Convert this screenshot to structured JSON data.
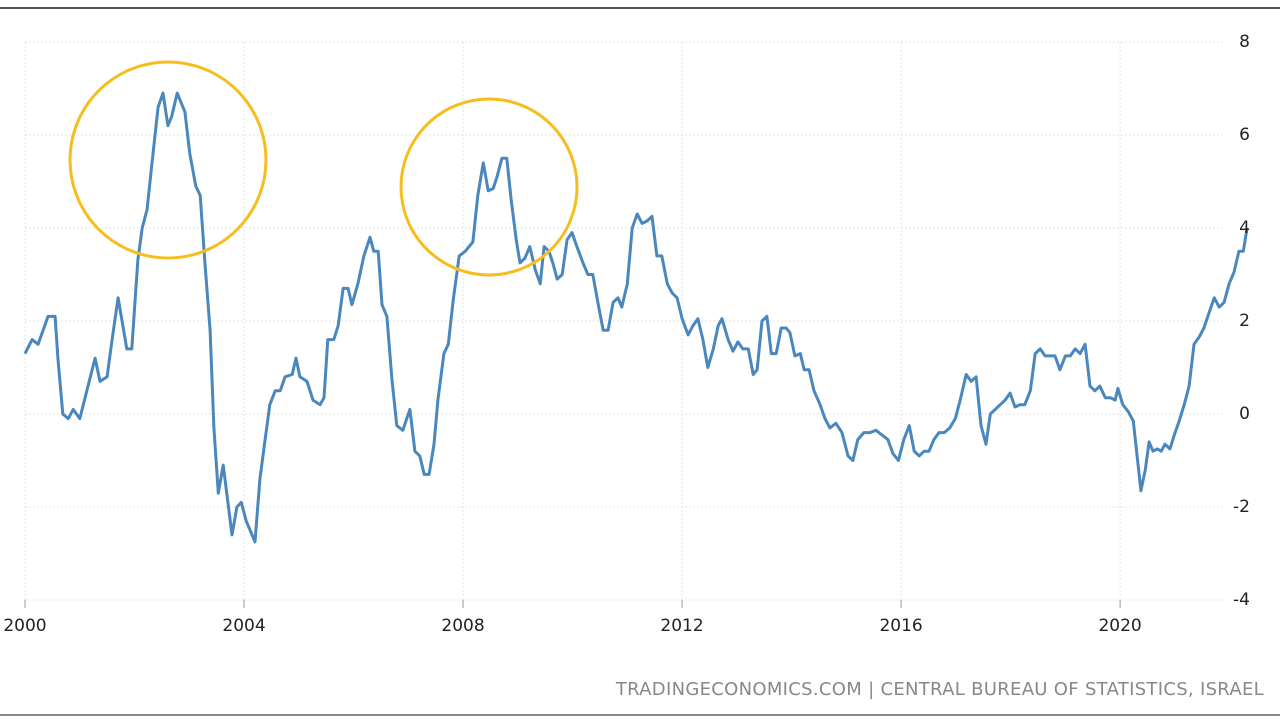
{
  "chart_data": {
    "type": "line",
    "source": "TRADINGECONOMICS.COM | CENTRAL BUREAU OF STATISTICS, ISRAEL",
    "xlim": [
      2000,
      2022.5
    ],
    "xticks": [
      2000,
      2004,
      2008,
      2012,
      2016,
      2020
    ],
    "ylim": [
      -4,
      8
    ],
    "yticks": [
      -4,
      -2,
      0,
      2,
      4,
      6,
      8
    ],
    "grid": true,
    "x": [
      2000.0,
      2000.13,
      2000.24,
      2000.33,
      2000.42,
      2000.55,
      2000.6,
      2000.69,
      2000.79,
      2000.88,
      2001.0,
      2001.15,
      2001.28,
      2001.37,
      2001.5,
      2001.59,
      2001.7,
      2001.86,
      2001.95,
      2002.06,
      2002.14,
      2002.23,
      2002.32,
      2002.43,
      2002.52,
      2002.61,
      2002.68,
      2002.78,
      2002.92,
      2003.01,
      2003.12,
      2003.2,
      2003.29,
      2003.38,
      2003.45,
      2003.53,
      2003.62,
      2003.78,
      2003.87,
      2003.95,
      2004.04,
      2004.2,
      2004.29,
      2004.38,
      2004.47,
      2004.57,
      2004.66,
      2004.75,
      2004.88,
      2004.95,
      2005.02,
      2005.15,
      2005.26,
      2005.39,
      2005.46,
      2005.53,
      2005.64,
      2005.72,
      2005.81,
      2005.9,
      2005.97,
      2006.08,
      2006.19,
      2006.3,
      2006.37,
      2006.45,
      2006.52,
      2006.61,
      2006.7,
      2006.79,
      2006.9,
      2007.03,
      2007.12,
      2007.21,
      2007.29,
      2007.38,
      2007.47,
      2007.54,
      2007.65,
      2007.73,
      2007.82,
      2007.93,
      2008.04,
      2008.18,
      2008.27,
      2008.37,
      2008.46,
      2008.55,
      2008.62,
      2008.71,
      2008.8,
      2008.88,
      2008.97,
      2009.04,
      2009.13,
      2009.22,
      2009.32,
      2009.41,
      2009.48,
      2009.57,
      2009.64,
      2009.72,
      2009.81,
      2009.9,
      2009.99,
      2010.08,
      2010.19,
      2010.28,
      2010.37,
      2010.47,
      2010.56,
      2010.65,
      2010.74,
      2010.83,
      2010.9,
      2011.0,
      2011.09,
      2011.18,
      2011.27,
      2011.36,
      2011.45,
      2011.54,
      2011.63,
      2011.73,
      2011.82,
      2011.91,
      2012.0,
      2012.11,
      2012.2,
      2012.29,
      2012.38,
      2012.47,
      2012.57,
      2012.66,
      2012.73,
      2012.84,
      2012.93,
      2013.02,
      2013.11,
      2013.21,
      2013.3,
      2013.37,
      2013.46,
      2013.55,
      2013.63,
      2013.72,
      2013.81,
      2013.9,
      2013.97,
      2014.06,
      2014.16,
      2014.23,
      2014.32,
      2014.41,
      2014.52,
      2014.61,
      2014.7,
      2014.81,
      2014.92,
      2015.03,
      2015.12,
      2015.21,
      2015.32,
      2015.43,
      2015.54,
      2015.65,
      2015.76,
      2015.85,
      2015.95,
      2016.05,
      2016.15,
      2016.24,
      2016.33,
      2016.42,
      2016.51,
      2016.6,
      2016.69,
      2016.79,
      2016.89,
      2016.99,
      2017.08,
      2017.19,
      2017.28,
      2017.37,
      2017.46,
      2017.55,
      2017.63,
      2017.72,
      2017.81,
      2017.9,
      2017.99,
      2018.08,
      2018.17,
      2018.26,
      2018.36,
      2018.45,
      2018.54,
      2018.63,
      2018.72,
      2018.81,
      2018.9,
      2019.0,
      2019.09,
      2019.18,
      2019.27,
      2019.36,
      2019.45,
      2019.54,
      2019.63,
      2019.73,
      2019.82,
      2019.91,
      2019.96,
      2020.05,
      2020.15,
      2020.24,
      2020.31,
      2020.38,
      2020.46,
      2020.53,
      2020.6,
      2020.68,
      2020.75,
      2020.82,
      2020.91,
      2020.99,
      2021.08,
      2021.17,
      2021.26,
      2021.35,
      2021.44,
      2021.53,
      2021.63,
      2021.72,
      2021.81,
      2021.9,
      2021.99,
      2022.08,
      2022.17,
      2022.25,
      2022.32
    ],
    "series": [
      {
        "color": "#4a87bd",
        "values": [
          1.3,
          1.6,
          1.5,
          1.8,
          2.1,
          2.1,
          1.2,
          0,
          -0.1,
          0.1,
          -0.1,
          0.6,
          1.2,
          0.7,
          0.8,
          1.6,
          2.5,
          1.4,
          1.4,
          3.3,
          4.0,
          4.4,
          5.4,
          6.6,
          6.9,
          6.2,
          6.4,
          6.9,
          6.5,
          5.6,
          4.9,
          4.7,
          3.2,
          1.8,
          -0.3,
          -1.7,
          -1.1,
          -2.6,
          -2.0,
          -1.9,
          -2.3,
          -2.75,
          -1.4,
          -0.6,
          0.2,
          0.5,
          0.5,
          0.8,
          0.85,
          1.2,
          0.8,
          0.7,
          0.3,
          0.2,
          0.35,
          1.6,
          1.6,
          1.9,
          2.7,
          2.7,
          2.35,
          2.8,
          3.4,
          3.8,
          3.5,
          3.5,
          2.35,
          2.1,
          0.75,
          -0.25,
          -0.35,
          0.1,
          -0.8,
          -0.9,
          -1.3,
          -1.3,
          -0.65,
          0.3,
          1.3,
          1.5,
          2.45,
          3.4,
          3.5,
          3.7,
          4.7,
          5.4,
          4.8,
          4.85,
          5.1,
          5.5,
          5.5,
          4.6,
          3.75,
          3.25,
          3.35,
          3.6,
          3.1,
          2.8,
          3.6,
          3.5,
          3.25,
          2.9,
          3.0,
          3.75,
          3.9,
          3.6,
          3.25,
          3.0,
          3.0,
          2.35,
          1.8,
          1.8,
          2.4,
          2.5,
          2.3,
          2.8,
          4.0,
          4.3,
          4.1,
          4.15,
          4.25,
          3.4,
          3.4,
          2.8,
          2.6,
          2.5,
          2.05,
          1.7,
          1.9,
          2.05,
          1.6,
          1.0,
          1.4,
          1.9,
          2.05,
          1.6,
          1.35,
          1.55,
          1.4,
          1.4,
          0.85,
          0.95,
          2.0,
          2.1,
          1.3,
          1.3,
          1.85,
          1.85,
          1.75,
          1.25,
          1.3,
          0.95,
          0.95,
          0.5,
          0.2,
          -0.1,
          -0.3,
          -0.2,
          -0.4,
          -0.9,
          -1.0,
          -0.55,
          -0.4,
          -0.4,
          -0.35,
          -0.45,
          -0.55,
          -0.85,
          -1.0,
          -0.55,
          -0.25,
          -0.8,
          -0.9,
          -0.8,
          -0.8,
          -0.55,
          -0.4,
          -0.4,
          -0.3,
          -0.1,
          0.3,
          0.85,
          0.7,
          0.8,
          -0.25,
          -0.65,
          0.0,
          0.1,
          0.2,
          0.3,
          0.45,
          0.15,
          0.2,
          0.2,
          0.5,
          1.3,
          1.4,
          1.25,
          1.25,
          1.25,
          0.95,
          1.25,
          1.25,
          1.4,
          1.3,
          1.5,
          0.6,
          0.5,
          0.6,
          0.35,
          0.35,
          0.3,
          0.55,
          0.2,
          0.05,
          -0.15,
          -0.9,
          -1.65,
          -1.2,
          -0.6,
          -0.8,
          -0.75,
          -0.8,
          -0.65,
          -0.75,
          -0.45,
          -0.15,
          0.2,
          0.6,
          1.5,
          1.65,
          1.85,
          2.2,
          2.5,
          2.3,
          2.4,
          2.8,
          3.05,
          3.5,
          3.5,
          4.0
        ]
      }
    ]
  }
}
